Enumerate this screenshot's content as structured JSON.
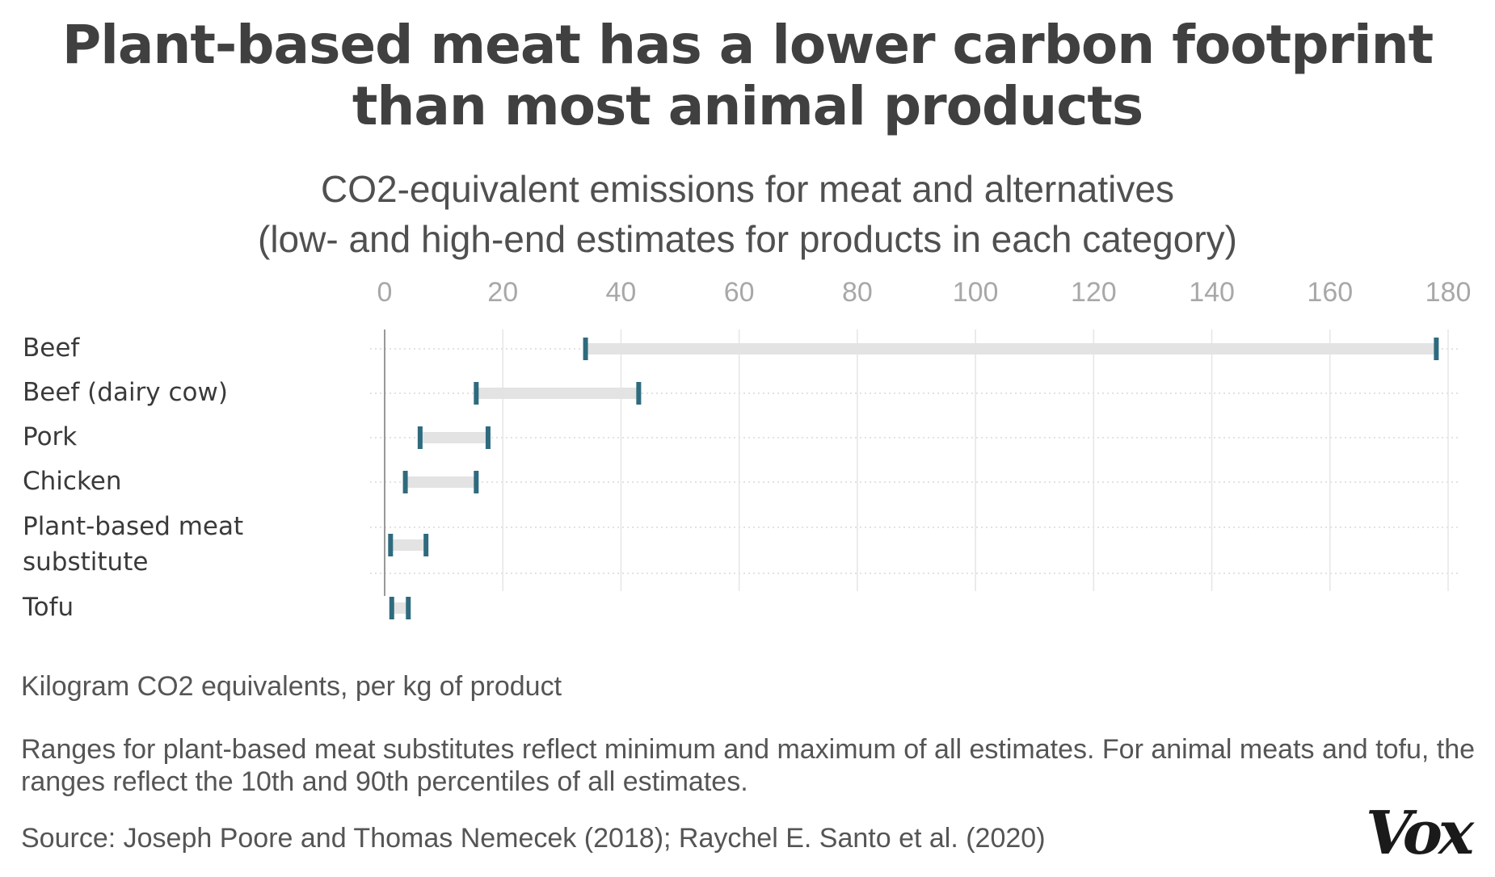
{
  "title": "Plant-based meat has a lower carbon footprint than most animal products",
  "subtitle_lines": [
    "CO2-equivalent emissions for meat and alternatives",
    "(low- and high-end estimates for products in each category)"
  ],
  "chart_data": {
    "type": "range",
    "xlim": [
      0,
      180
    ],
    "x_ticks": [
      0,
      20,
      40,
      60,
      80,
      100,
      120,
      140,
      160,
      180
    ],
    "grid": true,
    "categories": [
      {
        "label": [
          "Beef"
        ],
        "low": 34,
        "high": 178
      },
      {
        "label": [
          "Beef (dairy cow)"
        ],
        "low": 15.5,
        "high": 43
      },
      {
        "label": [
          "Pork"
        ],
        "low": 6,
        "high": 17.5
      },
      {
        "label": [
          "Chicken"
        ],
        "low": 3.5,
        "high": 15.5
      },
      {
        "label": [
          "Plant-based meat",
          "substitute"
        ],
        "low": 1,
        "high": 7
      },
      {
        "label": [
          "Tofu"
        ],
        "low": 1.2,
        "high": 4
      }
    ],
    "colors": {
      "marker": "#2e6b7e",
      "range_bar": "#e3e3e3",
      "grid": "#e5e5e5",
      "axis": "#999999",
      "tick_label": "#a8a8a8",
      "category_label": "#3a3a3a"
    }
  },
  "x_unit_note": "Kilogram CO2 equivalents, per kg of product",
  "methodology_note": "Ranges for plant-based meat substitutes reflect minimum and maximum of all estimates. For animal meats and tofu, the ranges reflect the 10th and 90th percentiles of all estimates.",
  "source": "Source: Joseph Poore and Thomas Nemecek (2018); Raychel E. Santo et al. (2020)",
  "logo": "Vox"
}
